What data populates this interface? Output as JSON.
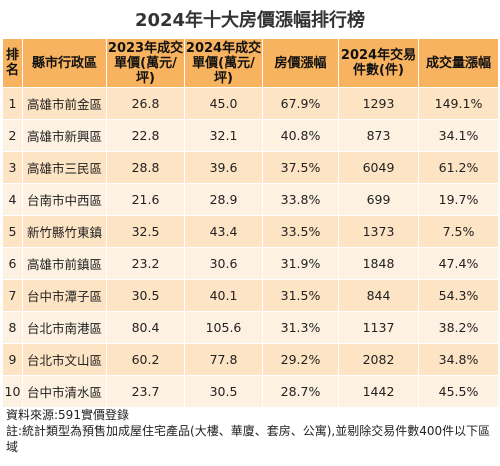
{
  "title": "2024年十大房價漲幅排行榜",
  "headers": [
    "排名",
    "縣市行政區",
    "2023年成交單價(萬元/坪)",
    "2024年成交單價(萬元/坪)",
    "房價漲幅",
    "2024年交易件數(件)",
    "成交量漲幅"
  ],
  "rows": [
    {
      "rank": "1",
      "area": "高雄市前金區",
      "p2023": "26.8",
      "p2024": "45.0",
      "rise": "67.9%",
      "count": "1293",
      "vol": "149.1%"
    },
    {
      "rank": "2",
      "area": "高雄市新興區",
      "p2023": "22.8",
      "p2024": "32.1",
      "rise": "40.8%",
      "count": "873",
      "vol": "34.1%"
    },
    {
      "rank": "3",
      "area": "高雄市三民區",
      "p2023": "28.8",
      "p2024": "39.6",
      "rise": "37.5%",
      "count": "6049",
      "vol": "61.2%"
    },
    {
      "rank": "4",
      "area": "台南市中西區",
      "p2023": "21.6",
      "p2024": "28.9",
      "rise": "33.8%",
      "count": "699",
      "vol": "19.7%"
    },
    {
      "rank": "5",
      "area": "新竹縣竹東鎮",
      "p2023": "32.5",
      "p2024": "43.4",
      "rise": "33.5%",
      "count": "1373",
      "vol": "7.5%"
    },
    {
      "rank": "6",
      "area": "高雄市前鎮區",
      "p2023": "23.2",
      "p2024": "30.6",
      "rise": "31.9%",
      "count": "1848",
      "vol": "47.4%"
    },
    {
      "rank": "7",
      "area": "台中市潭子區",
      "p2023": "30.5",
      "p2024": "40.1",
      "rise": "31.5%",
      "count": "844",
      "vol": "54.3%"
    },
    {
      "rank": "8",
      "area": "台北市南港區",
      "p2023": "80.4",
      "p2024": "105.6",
      "rise": "31.3%",
      "count": "1137",
      "vol": "38.2%"
    },
    {
      "rank": "9",
      "area": "台北市文山區",
      "p2023": "60.2",
      "p2024": "77.8",
      "rise": "29.2%",
      "count": "2082",
      "vol": "34.8%"
    },
    {
      "rank": "10",
      "area": "台中市清水區",
      "p2023": "23.7",
      "p2024": "30.5",
      "rise": "28.7%",
      "count": "1442",
      "vol": "45.5%"
    }
  ],
  "notes": {
    "source": "資料來源:591實價登錄",
    "note": "註:統計類型為預售加成屋住宅產品(大樓、華廈、套房、公寓),並剔除交易件數400件以下區域"
  },
  "colors": {
    "header": "#f7b35f",
    "row_odd": "#fde4c4",
    "row_even": "#fdf1e2"
  }
}
